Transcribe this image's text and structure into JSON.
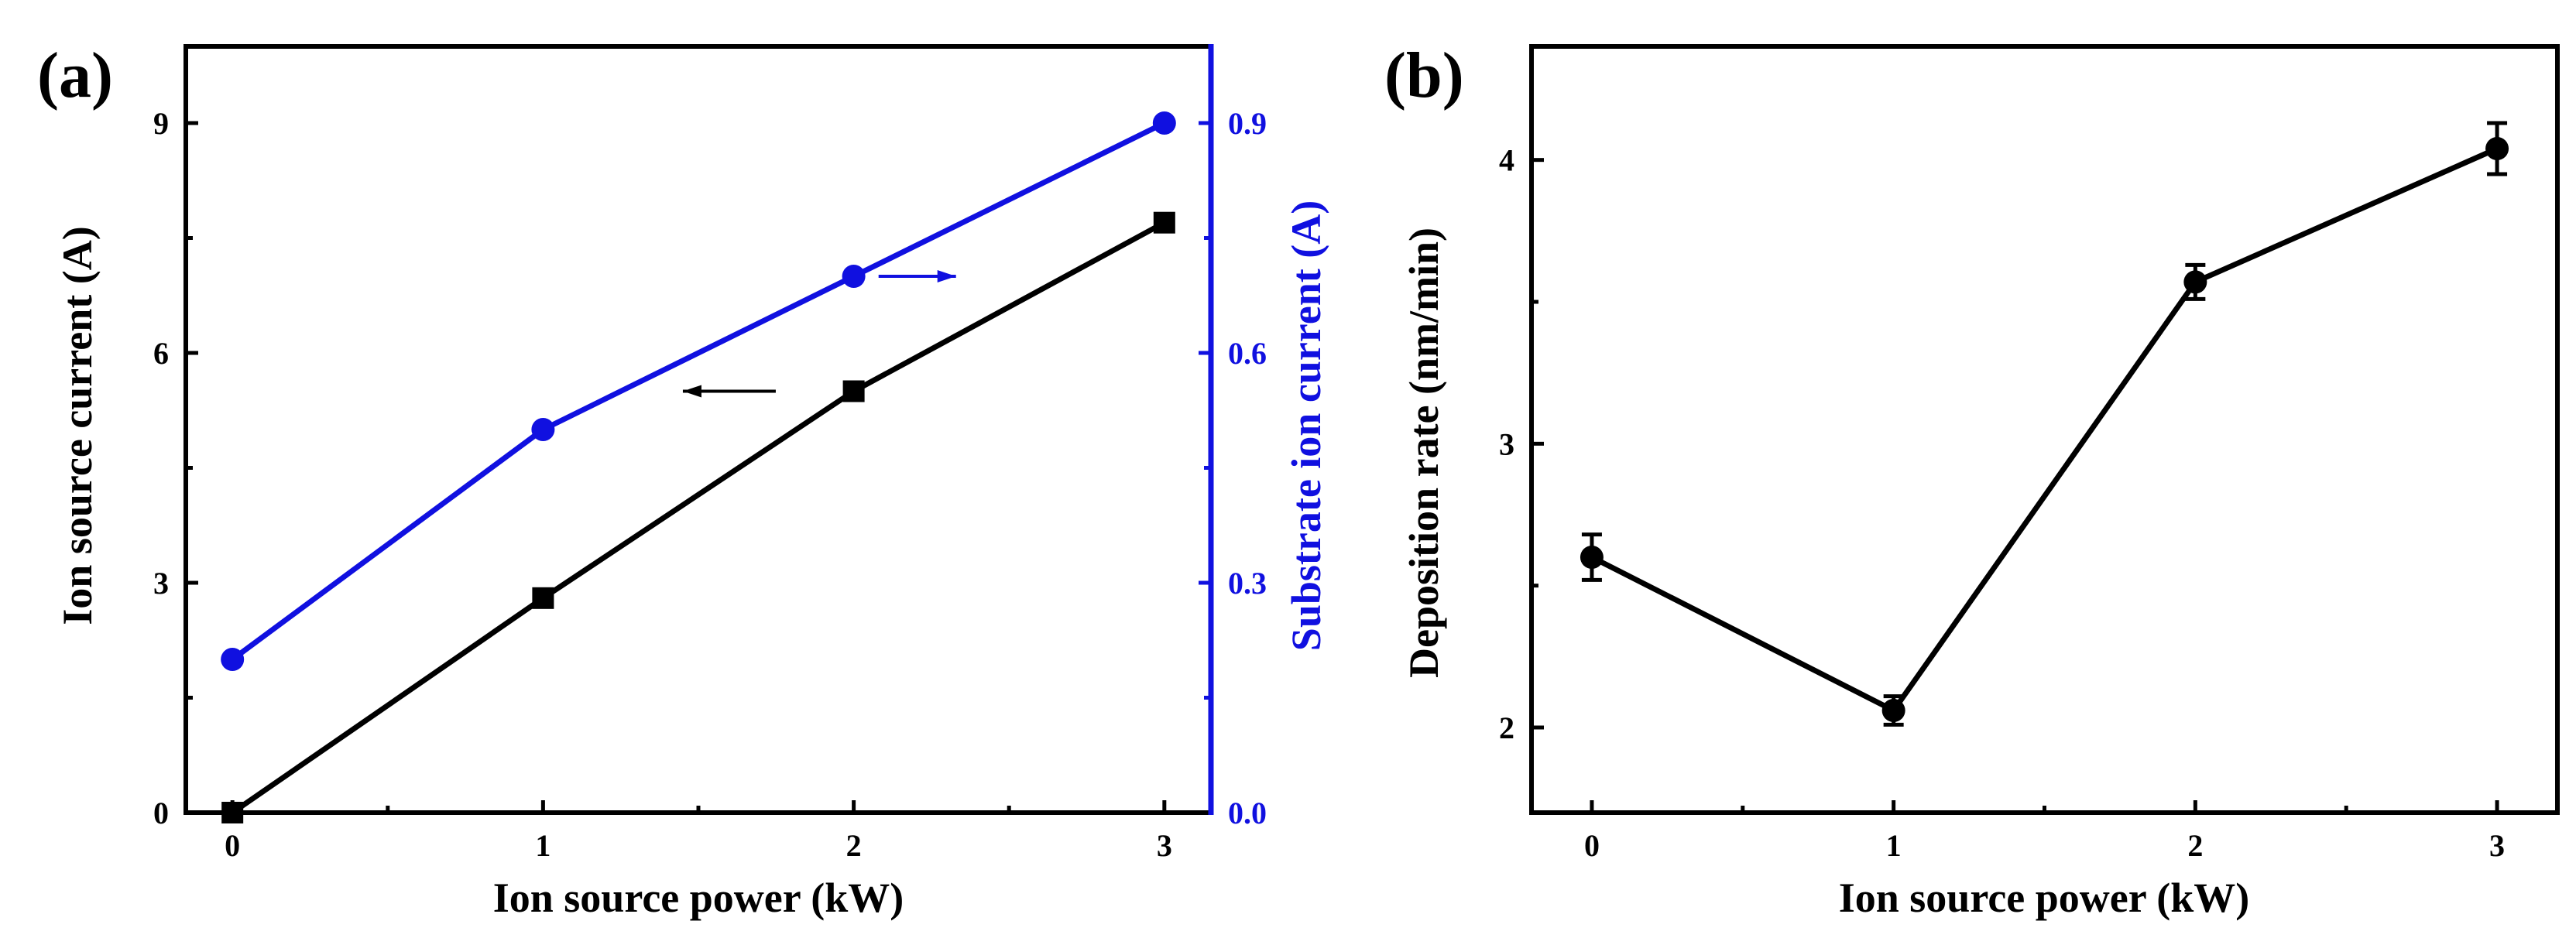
{
  "chart_data": [
    {
      "panel_label": "(a)",
      "type": "line",
      "xlabel": "Ion source power (kW)",
      "ylabel": "Ion source current (A)",
      "y2label": "Substrate ion current (A)",
      "x": [
        0,
        1,
        2,
        3
      ],
      "xticks": [
        "0",
        "1",
        "2",
        "3"
      ],
      "xlim": [
        -0.15,
        3.15
      ],
      "ylim": [
        0,
        10
      ],
      "yticks": [
        "0",
        "3",
        "6",
        "9"
      ],
      "y2lim": [
        0,
        1.0
      ],
      "y2ticks": [
        "0.0",
        "0.3",
        "0.6",
        "0.9"
      ],
      "series": [
        {
          "name": "Ion source current",
          "axis": "left",
          "marker": "square",
          "color": "#000000",
          "values": [
            0.0,
            2.8,
            5.5,
            7.7
          ]
        },
        {
          "name": "Substrate ion current",
          "axis": "right",
          "marker": "circle",
          "color": "#1010e0",
          "values": [
            0.2,
            0.5,
            0.7,
            0.9
          ]
        }
      ],
      "annotations": [
        {
          "type": "arrow",
          "direction": "left",
          "points_to": "Ion source current",
          "color": "#000000"
        },
        {
          "type": "arrow",
          "direction": "right",
          "points_to": "Substrate ion current",
          "color": "#1010e0"
        }
      ]
    },
    {
      "panel_label": "(b)",
      "type": "line",
      "xlabel": "Ion source power (kW)",
      "ylabel": "Deposition rate (nm/min)",
      "x": [
        0,
        1,
        2,
        3
      ],
      "xticks": [
        "0",
        "1",
        "2",
        "3"
      ],
      "xlim": [
        -0.2,
        3.2
      ],
      "ylim": [
        1.7,
        4.4
      ],
      "yticks": [
        "2",
        "3",
        "4"
      ],
      "series": [
        {
          "name": "Deposition rate",
          "marker": "circle",
          "color": "#000000",
          "values": [
            2.6,
            2.06,
            3.57,
            4.04
          ],
          "errors": [
            0.08,
            0.05,
            0.06,
            0.09
          ]
        }
      ]
    }
  ]
}
